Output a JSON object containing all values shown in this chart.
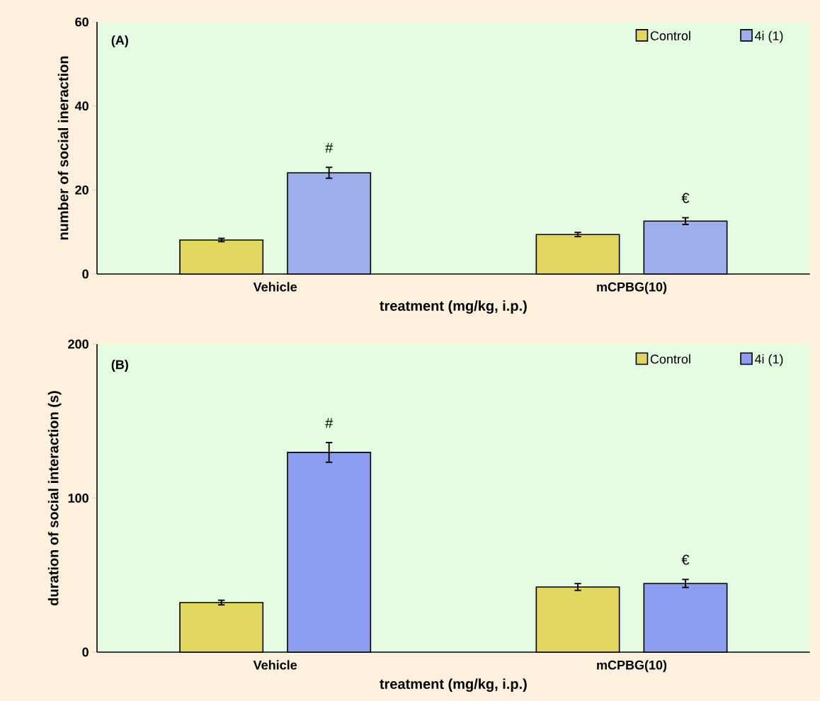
{
  "chart_data": [
    {
      "type": "bar",
      "title": "(A)",
      "xlabel": "treatment (mg/kg, i.p.)",
      "ylabel": "number of social ineraction",
      "categories": [
        "Vehicle",
        "mCPBG(10)"
      ],
      "series": [
        {
          "name": "Control",
          "color": "#e0d660",
          "values": [
            8.1,
            9.4
          ],
          "errors": [
            0.4,
            0.5
          ]
        },
        {
          "name": "4i (1)",
          "color": "#9daeea",
          "values": [
            24.1,
            12.6
          ],
          "errors": [
            1.3,
            0.8
          ]
        }
      ],
      "ylim": [
        0,
        60
      ],
      "yticks": [
        0,
        20,
        40,
        60
      ],
      "legend": "top right",
      "annotations": [
        "#",
        "€"
      ]
    },
    {
      "type": "bar",
      "title": "(B)",
      "xlabel": "treatment (mg/kg, i.p.)",
      "ylabel": "duration of social interaction (s)",
      "categories": [
        "Vehicle",
        "mCPBG(10)"
      ],
      "series": [
        {
          "name": "Control",
          "color": "#e0d660",
          "values": [
            32.2,
            42.3
          ],
          "errors": [
            1.5,
            2.2
          ]
        },
        {
          "name": "4i (1)",
          "color": "#8c9cee",
          "values": [
            129.7,
            44.6
          ],
          "errors": [
            6.4,
            2.6
          ]
        }
      ],
      "ylim": [
        0,
        200
      ],
      "yticks": [
        0,
        100,
        200
      ],
      "legend": "top right",
      "annotations": [
        "#",
        "€"
      ]
    }
  ]
}
